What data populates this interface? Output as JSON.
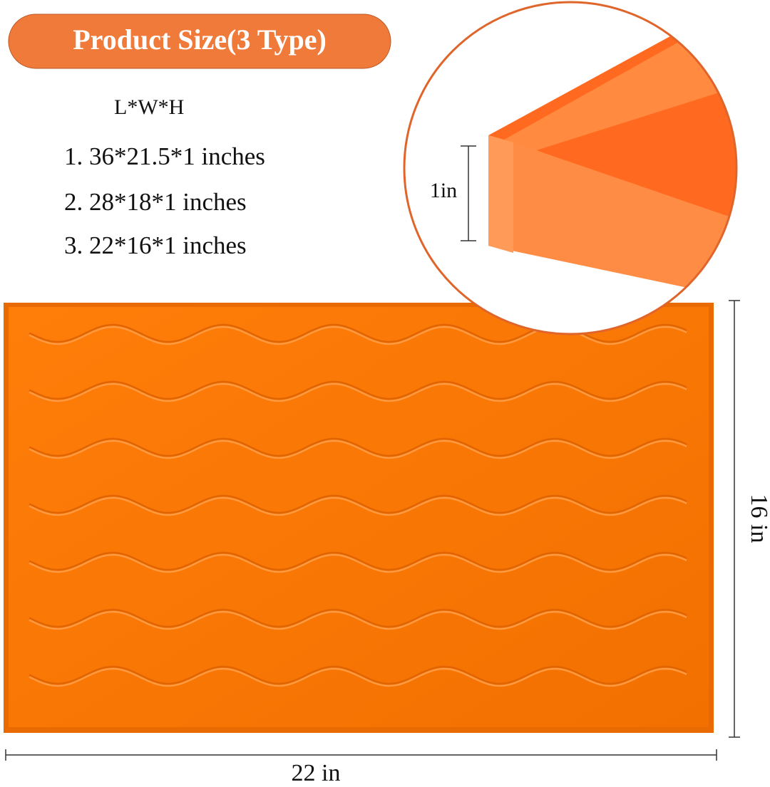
{
  "header": {
    "title": "Product Size(3 Type)"
  },
  "sizes": {
    "heading": "L*W*H",
    "items": [
      "1. 36*21.5*1 inches",
      "2. 28*18*1 inches",
      "3. 22*16*1 inches"
    ]
  },
  "dimensions": {
    "height": "1in",
    "width": "16 in",
    "length": "22 in"
  }
}
